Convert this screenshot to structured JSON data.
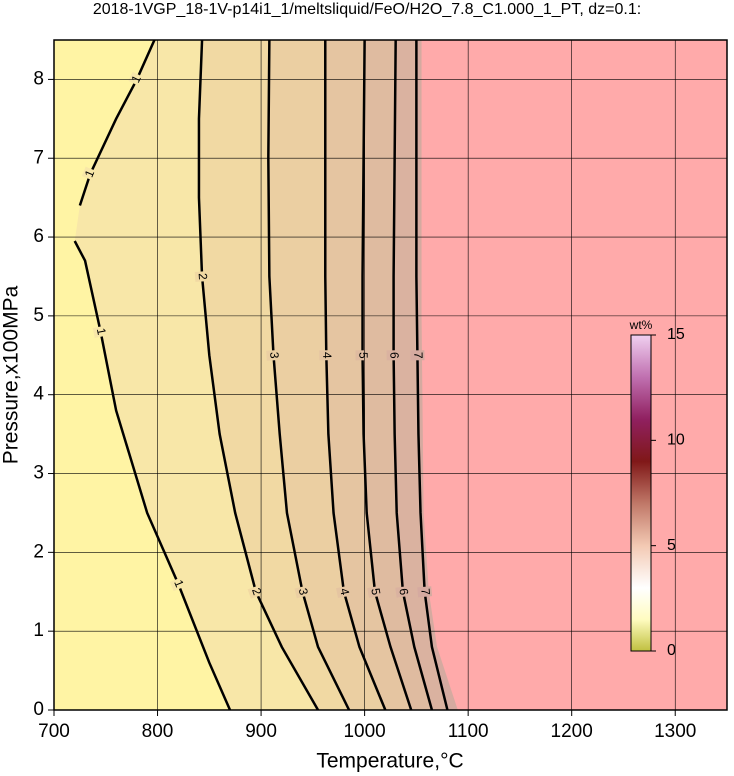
{
  "chart_data": {
    "type": "contour",
    "title": "2018-1VGP_18-1V-p14i1_1/meltsliquid/FeO/H2O_7.8_C1.000_1_PT, dz=0.1:",
    "x_label": "Temperature,°C",
    "y_label": "Pressure,x100MPa",
    "xlim": [
      700,
      1350
    ],
    "ylim": [
      0,
      8.5
    ],
    "xticks": [
      700,
      800,
      900,
      1000,
      1100,
      1200,
      1300
    ],
    "yticks": [
      0,
      1,
      2,
      3,
      4,
      5,
      6,
      7,
      8
    ],
    "grid": true,
    "background": "#fff4a4",
    "contours": [
      {
        "level": 1,
        "fill": "#f8e7a8",
        "x": [
          797,
          780,
          760,
          735,
          725,
          null,
          720,
          730,
          745,
          760,
          790,
          820,
          850,
          870
        ],
        "y": [
          8.5,
          8.0,
          7.5,
          6.8,
          6.4,
          null,
          5.95,
          5.7,
          4.8,
          3.8,
          2.5,
          1.6,
          0.6,
          0
        ]
      },
      {
        "level": 2,
        "fill": "#f1d9a3",
        "x": [
          843,
          840,
          840,
          843,
          850,
          860,
          875,
          895,
          920,
          955
        ],
        "y": [
          8.5,
          7.5,
          6.5,
          5.5,
          4.5,
          3.5,
          2.5,
          1.5,
          0.8,
          0
        ]
      },
      {
        "level": 3,
        "fill": "#ebcfa2",
        "x": [
          908,
          907,
          908,
          912,
          918,
          925,
          940,
          955,
          985
        ],
        "y": [
          8.5,
          7,
          5.5,
          4.5,
          3.5,
          2.5,
          1.5,
          0.8,
          0
        ]
      },
      {
        "level": 4,
        "fill": "#e5c5a1",
        "x": [
          962,
          962,
          962,
          963,
          965,
          970,
          980,
          995,
          1020
        ],
        "y": [
          8.5,
          7,
          5.5,
          4.5,
          3.5,
          2.5,
          1.5,
          0.8,
          0
        ]
      },
      {
        "level": 5,
        "fill": "#dfbba0",
        "x": [
          1000,
          999,
          998,
          998,
          999,
          1002,
          1010,
          1025,
          1045
        ],
        "y": [
          8.5,
          7,
          5.5,
          4.5,
          3.5,
          2.5,
          1.5,
          0.8,
          0
        ]
      },
      {
        "level": 6,
        "fill": "#dab2a0",
        "x": [
          1030,
          1029,
          1028,
          1028,
          1029,
          1031,
          1037,
          1048,
          1065
        ],
        "y": [
          8.5,
          7,
          5.5,
          4.5,
          3.5,
          2.5,
          1.5,
          0.8,
          0
        ]
      },
      {
        "level": 7,
        "fill": "#d5aaa0",
        "x": [
          1050,
          1050,
          1050,
          1051,
          1052,
          1054,
          1058,
          1065,
          1080
        ],
        "y": [
          8.5,
          7,
          5.5,
          4.5,
          3.5,
          2.5,
          1.5,
          0.8,
          0
        ]
      }
    ],
    "masked_region": {
      "color": "#ffaaaa",
      "x": [
        1055,
        1055,
        1057,
        1062,
        1070,
        1085,
        1090
      ],
      "y": [
        8.5,
        5,
        2.5,
        1.5,
        0.8,
        0.2,
        0
      ]
    },
    "colorbar": {
      "label": "wt%",
      "lim": [
        0,
        15
      ],
      "ticks": [
        0,
        5,
        10,
        15
      ],
      "stops": [
        [
          0,
          "#c0c040"
        ],
        [
          1.5,
          "#fffcc0"
        ],
        [
          3,
          "#ffffff"
        ],
        [
          5,
          "#f3c9b3"
        ],
        [
          7,
          "#c07868"
        ],
        [
          9,
          "#801818"
        ],
        [
          11,
          "#902060"
        ],
        [
          13,
          "#c070b0"
        ],
        [
          15,
          "#f0d0f0"
        ]
      ]
    }
  }
}
